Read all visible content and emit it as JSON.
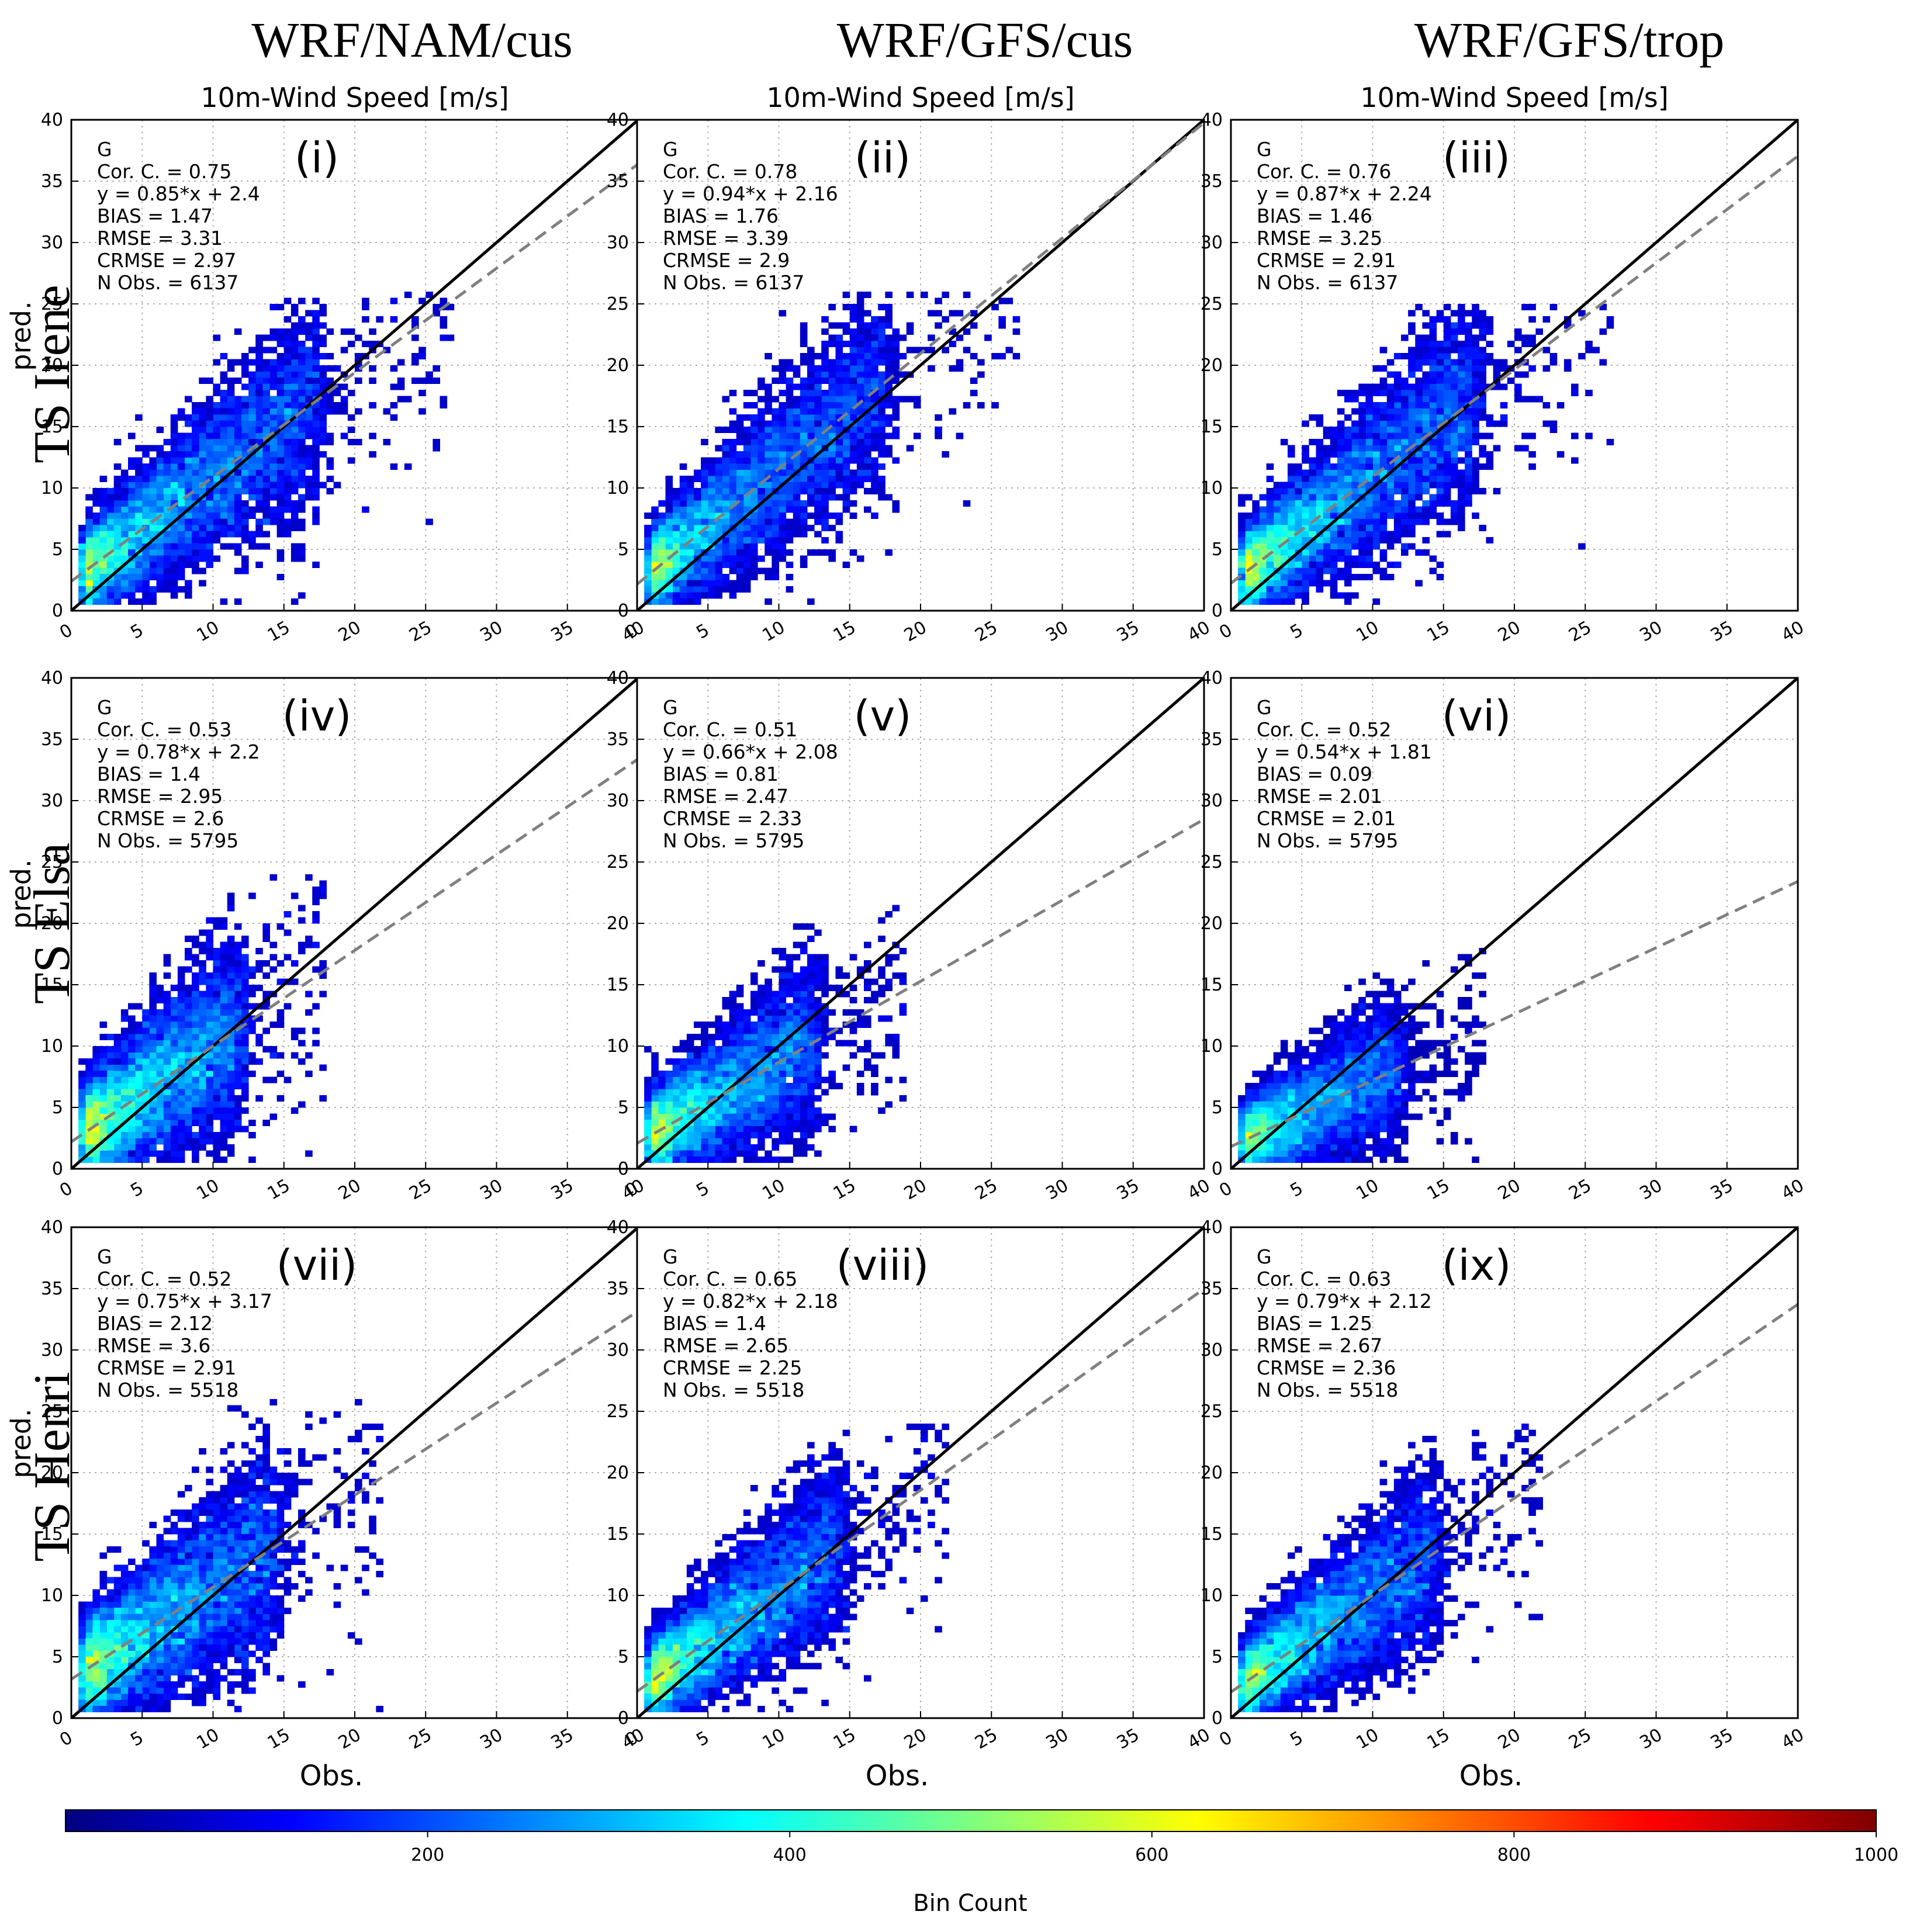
{
  "figure": {
    "column_titles": [
      "WRF/NAM/cus",
      "WRF/GFS/cus",
      "WRF/GFS/trop"
    ],
    "row_titles": [
      "TS Irene",
      "TS Elsa",
      "TS Henri"
    ],
    "colorbar": {
      "label": "Bin Count",
      "ticks": [
        200,
        400,
        600,
        800,
        1000
      ],
      "range": [
        0,
        1000
      ],
      "colormap": [
        "#00007f",
        "#0000ff",
        "#007fff",
        "#00ffff",
        "#7fff7f",
        "#ffff00",
        "#ff7f00",
        "#ff0000",
        "#7f0000"
      ]
    },
    "colors": {
      "one_to_one": "#000000",
      "fit_line": "#808080",
      "grid": "#b0b0b0"
    }
  },
  "chart_data": [
    {
      "type": "heatmap",
      "panel_label": "(i)",
      "title": "10m-Wind Speed [m/s]",
      "xlabel": "",
      "ylabel": "pred.",
      "xlim": [
        0,
        40
      ],
      "ylim": [
        0,
        40
      ],
      "ticks": [
        0,
        5,
        10,
        15,
        20,
        25,
        30,
        35,
        40
      ],
      "grid": true,
      "stats": {
        "name": "G",
        "cor": "Cor. C. = 0.75",
        "fit": "y = 0.85*x + 2.4",
        "bias": "BIAS = 1.47",
        "rmse": "RMSE = 3.31",
        "crmse": "CRMSE = 2.97",
        "nobs": "N Obs. = 6137"
      },
      "slope": 0.85,
      "intercept": 2.4,
      "xmax_data": 27,
      "ymax_data": 26,
      "spread": 3.0
    },
    {
      "type": "heatmap",
      "panel_label": "(ii)",
      "title": "10m-Wind Speed [m/s]",
      "xlabel": "",
      "ylabel": "",
      "xlim": [
        0,
        40
      ],
      "ylim": [
        0,
        40
      ],
      "ticks": [
        0,
        5,
        10,
        15,
        20,
        25,
        30,
        35,
        40
      ],
      "grid": true,
      "stats": {
        "name": "G",
        "cor": "Cor. C. = 0.78",
        "fit": "y = 0.94*x + 2.16",
        "bias": "BIAS = 1.76",
        "rmse": "RMSE = 3.39",
        "crmse": "CRMSE = 2.9",
        "nobs": "N Obs. = 6137"
      },
      "slope": 0.94,
      "intercept": 2.16,
      "xmax_data": 27,
      "ymax_data": 26,
      "spread": 3.0
    },
    {
      "type": "heatmap",
      "panel_label": "(iii)",
      "title": "10m-Wind Speed [m/s]",
      "xlabel": "",
      "ylabel": "",
      "xlim": [
        0,
        40
      ],
      "ylim": [
        0,
        40
      ],
      "ticks": [
        0,
        5,
        10,
        15,
        20,
        25,
        30,
        35,
        40
      ],
      "grid": true,
      "stats": {
        "name": "G",
        "cor": "Cor. C. = 0.76",
        "fit": "y = 0.87*x + 2.24",
        "bias": "BIAS = 1.46",
        "rmse": "RMSE = 3.25",
        "crmse": "CRMSE = 2.91",
        "nobs": "N Obs. = 6137"
      },
      "slope": 0.87,
      "intercept": 2.24,
      "xmax_data": 27,
      "ymax_data": 25,
      "spread": 3.0
    },
    {
      "type": "heatmap",
      "panel_label": "(iv)",
      "title": "",
      "xlabel": "",
      "ylabel": "pred.",
      "xlim": [
        0,
        40
      ],
      "ylim": [
        0,
        40
      ],
      "ticks": [
        0,
        5,
        10,
        15,
        20,
        25,
        30,
        35,
        40
      ],
      "grid": true,
      "stats": {
        "name": "G",
        "cor": "Cor. C. = 0.53",
        "fit": "y = 0.78*x + 2.2",
        "bias": "BIAS = 1.4",
        "rmse": "RMSE = 2.95",
        "crmse": "CRMSE = 2.6",
        "nobs": "N Obs. = 5795"
      },
      "slope": 0.78,
      "intercept": 2.2,
      "xmax_data": 18,
      "ymax_data": 24,
      "spread": 3.4
    },
    {
      "type": "heatmap",
      "panel_label": "(v)",
      "title": "",
      "xlabel": "",
      "ylabel": "",
      "xlim": [
        0,
        40
      ],
      "ylim": [
        0,
        40
      ],
      "ticks": [
        0,
        5,
        10,
        15,
        20,
        25,
        30,
        35,
        40
      ],
      "grid": true,
      "stats": {
        "name": "G",
        "cor": "Cor. C. = 0.51",
        "fit": "y = 0.66*x + 2.08",
        "bias": "BIAS = 0.81",
        "rmse": "RMSE = 2.47",
        "crmse": "CRMSE = 2.33",
        "nobs": "N Obs. = 5795"
      },
      "slope": 0.66,
      "intercept": 2.08,
      "xmax_data": 19,
      "ymax_data": 22,
      "spread": 3.0
    },
    {
      "type": "heatmap",
      "panel_label": "(vi)",
      "title": "",
      "xlabel": "",
      "ylabel": "",
      "xlim": [
        0,
        40
      ],
      "ylim": [
        0,
        40
      ],
      "ticks": [
        0,
        5,
        10,
        15,
        20,
        25,
        30,
        35,
        40
      ],
      "grid": true,
      "stats": {
        "name": "G",
        "cor": "Cor. C. = 0.52",
        "fit": "y = 0.54*x + 1.81",
        "bias": "BIAS = 0.09",
        "rmse": "RMSE = 2.01",
        "crmse": "CRMSE = 2.01",
        "nobs": "N Obs. = 5795"
      },
      "slope": 0.54,
      "intercept": 1.81,
      "xmax_data": 18,
      "ymax_data": 18,
      "spread": 2.6
    },
    {
      "type": "heatmap",
      "panel_label": "(vii)",
      "title": "",
      "xlabel": "Obs.",
      "ylabel": "pred.",
      "xlim": [
        0,
        40
      ],
      "ylim": [
        0,
        40
      ],
      "ticks": [
        0,
        5,
        10,
        15,
        20,
        25,
        30,
        35,
        40
      ],
      "grid": true,
      "stats": {
        "name": "G",
        "cor": "Cor. C. = 0.52",
        "fit": "y = 0.75*x + 3.17",
        "bias": "BIAS = 2.12",
        "rmse": "RMSE = 3.6",
        "crmse": "CRMSE = 2.91",
        "nobs": "N Obs. = 5518"
      },
      "slope": 0.75,
      "intercept": 3.17,
      "xmax_data": 22,
      "ymax_data": 26,
      "spread": 3.4
    },
    {
      "type": "heatmap",
      "panel_label": "(viii)",
      "title": "",
      "xlabel": "Obs.",
      "ylabel": "",
      "xlim": [
        0,
        40
      ],
      "ylim": [
        0,
        40
      ],
      "ticks": [
        0,
        5,
        10,
        15,
        20,
        25,
        30,
        35,
        40
      ],
      "grid": true,
      "stats": {
        "name": "G",
        "cor": "Cor. C. = 0.65",
        "fit": "y = 0.82*x + 2.18",
        "bias": "BIAS = 1.4",
        "rmse": "RMSE = 2.65",
        "crmse": "CRMSE = 2.25",
        "nobs": "N Obs. = 5518"
      },
      "slope": 0.82,
      "intercept": 2.18,
      "xmax_data": 22,
      "ymax_data": 24,
      "spread": 2.8
    },
    {
      "type": "heatmap",
      "panel_label": "(ix)",
      "title": "",
      "xlabel": "Obs.",
      "ylabel": "",
      "xlim": [
        0,
        40
      ],
      "ylim": [
        0,
        40
      ],
      "ticks": [
        0,
        5,
        10,
        15,
        20,
        25,
        30,
        35,
        40
      ],
      "grid": true,
      "stats": {
        "name": "G",
        "cor": "Cor. C. = 0.63",
        "fit": "y = 0.79*x + 2.12",
        "bias": "BIAS = 1.25",
        "rmse": "RMSE = 2.67",
        "crmse": "CRMSE = 2.36",
        "nobs": "N Obs. = 5518"
      },
      "slope": 0.79,
      "intercept": 2.12,
      "xmax_data": 22,
      "ymax_data": 24,
      "spread": 2.8
    }
  ]
}
